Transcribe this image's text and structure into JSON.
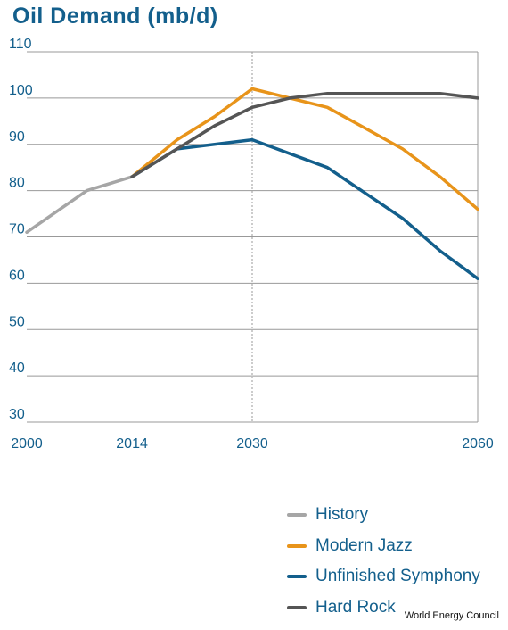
{
  "chart_data": {
    "type": "line",
    "title": "Oil Demand (mb/d)",
    "xlabel": "",
    "ylabel": "",
    "xlim": [
      2000,
      2060
    ],
    "ylim": [
      30,
      110
    ],
    "x_ticks": [
      "2000",
      "2014",
      "2030",
      "2060"
    ],
    "y_ticks": [
      "110",
      "100",
      "90",
      "80",
      "70",
      "60",
      "50",
      "40",
      "30"
    ],
    "grid": true,
    "legend_position": "bottom-right",
    "series": [
      {
        "name": "History",
        "color": "#a6a6a6",
        "points": [
          [
            2000,
            71
          ],
          [
            2008,
            80
          ],
          [
            2014,
            83
          ]
        ]
      },
      {
        "name": "Modern Jazz",
        "color": "#e8941a",
        "points": [
          [
            2014,
            83
          ],
          [
            2020,
            91
          ],
          [
            2025,
            96
          ],
          [
            2030,
            102
          ],
          [
            2040,
            98
          ],
          [
            2050,
            89
          ],
          [
            2055,
            83
          ],
          [
            2060,
            76
          ]
        ]
      },
      {
        "name": "Unfinished Symphony",
        "color": "#135f8c",
        "points": [
          [
            2014,
            83
          ],
          [
            2020,
            89
          ],
          [
            2030,
            91
          ],
          [
            2040,
            85
          ],
          [
            2050,
            74
          ],
          [
            2055,
            67
          ],
          [
            2060,
            61
          ]
        ]
      },
      {
        "name": "Hard Rock",
        "color": "#555555",
        "points": [
          [
            2014,
            83
          ],
          [
            2020,
            89
          ],
          [
            2025,
            94
          ],
          [
            2030,
            98
          ],
          [
            2035,
            100
          ],
          [
            2040,
            101
          ],
          [
            2050,
            101
          ],
          [
            2055,
            101
          ],
          [
            2060,
            100
          ]
        ]
      }
    ]
  },
  "source": "World Energy Council",
  "colors": {
    "title": "#135f8c",
    "axis_text": "#135f8c",
    "grid": "#999999"
  }
}
